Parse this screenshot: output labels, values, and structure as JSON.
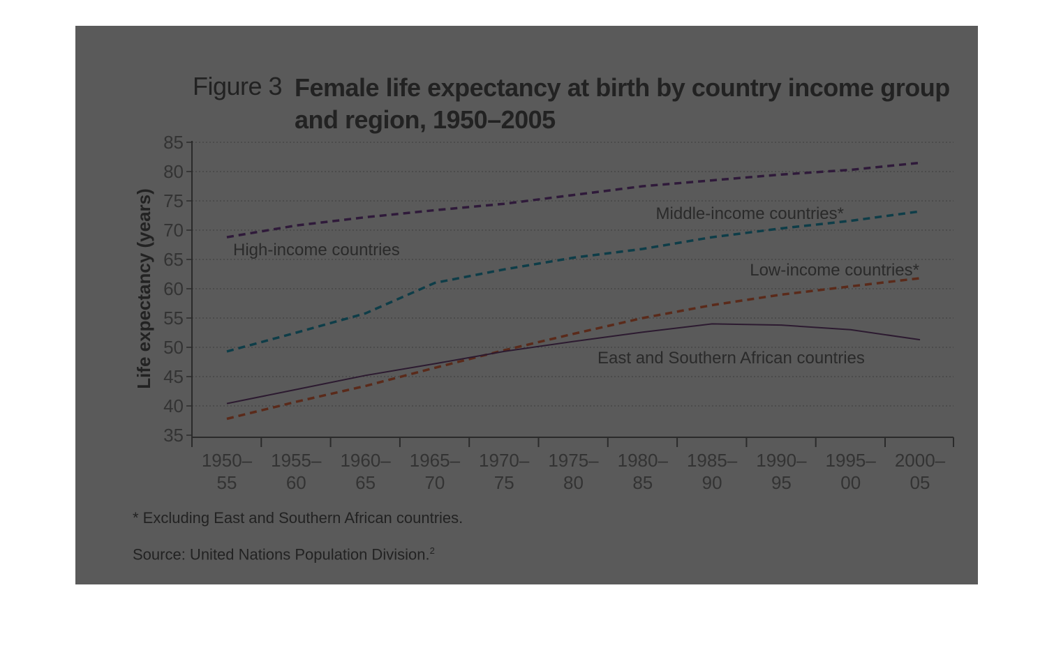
{
  "figure": {
    "number": "Figure 3",
    "title": "Female life expectancy at birth by country income group and region, 1950–2005"
  },
  "footnotes": {
    "note": "* Excluding East and Southern African countries.",
    "source": "Source: United Nations Population Division.",
    "source_ref": "2"
  },
  "colors": {
    "panel": "#5a5a5a",
    "high": "#2f1a3a",
    "middle": "#0e3d48",
    "low": "#5a2a1a",
    "esa": "#2c1a30"
  },
  "chart_data": {
    "type": "line",
    "ylabel": "Life expectancy (years)",
    "xlabel": "",
    "ylim": [
      35,
      85
    ],
    "yticks": [
      35,
      40,
      45,
      50,
      55,
      60,
      65,
      70,
      75,
      80,
      85
    ],
    "grid": true,
    "categories": [
      [
        "1950–",
        "55"
      ],
      [
        "1955–",
        "60"
      ],
      [
        "1960–",
        "65"
      ],
      [
        "1965–",
        "70"
      ],
      [
        "1970–",
        "75"
      ],
      [
        "1975–",
        "80"
      ],
      [
        "1980–",
        "85"
      ],
      [
        "1985–",
        "90"
      ],
      [
        "1990–",
        "95"
      ],
      [
        "1995–",
        "00"
      ],
      [
        "2000–",
        "05"
      ]
    ],
    "series": [
      {
        "name": "High-income countries",
        "key": "high",
        "dashed": true,
        "values": [
          68.8,
          70.8,
          72.2,
          73.4,
          74.5,
          76.0,
          77.5,
          78.5,
          79.5,
          80.3,
          81.5
        ]
      },
      {
        "name": "Middle-income countries*",
        "key": "middle",
        "dashed": true,
        "values": [
          49.3,
          52.5,
          55.8,
          61.0,
          63.3,
          65.3,
          66.8,
          68.8,
          70.3,
          71.6,
          73.2
        ]
      },
      {
        "name": "Low-income countries*",
        "key": "low",
        "dashed": true,
        "values": [
          37.8,
          40.7,
          43.4,
          46.5,
          49.5,
          52.3,
          55.0,
          57.2,
          59.0,
          60.4,
          61.8
        ]
      },
      {
        "name": "East and Southern African countries",
        "key": "esa",
        "dashed": false,
        "values": [
          40.4,
          42.8,
          45.2,
          47.2,
          49.3,
          51.0,
          52.6,
          54.0,
          53.8,
          53.0,
          51.3
        ]
      }
    ]
  }
}
